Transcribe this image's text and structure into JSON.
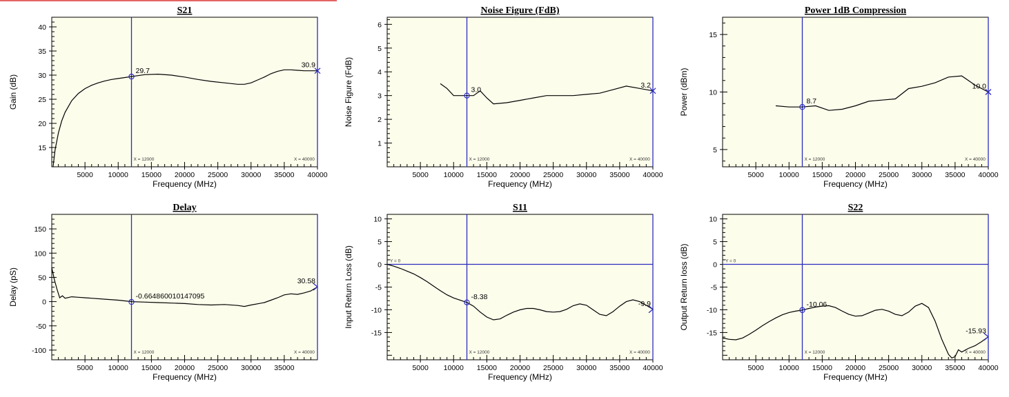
{
  "chart_data": [
    {
      "type": "line",
      "title": "S21",
      "xlabel": "Frequency (MHz)",
      "ylabel": "Gain (dB)",
      "xlim": [
        0,
        40000
      ],
      "ylim": [
        11,
        42
      ],
      "xticks": [
        5000,
        10000,
        15000,
        20000,
        25000,
        30000,
        35000,
        40000
      ],
      "yticks": [
        15,
        20,
        25,
        30,
        35,
        40
      ],
      "series": [
        {
          "x": [
            200,
            500,
            1000,
            1500,
            2000,
            3000,
            4000,
            5000,
            6000,
            7000,
            8000,
            9000,
            10000,
            11000,
            12000,
            13000,
            14000,
            16000,
            18000,
            20000,
            22000,
            24000,
            26000,
            28000,
            29000,
            30000,
            31000,
            32000,
            33000,
            34000,
            35000,
            36000,
            37000,
            38000,
            40000
          ],
          "y": [
            11,
            14.5,
            18,
            20.5,
            22.3,
            24.7,
            26.2,
            27.2,
            27.9,
            28.4,
            28.8,
            29.1,
            29.3,
            29.5,
            29.7,
            29.9,
            30.1,
            30.2,
            30.0,
            29.6,
            29.1,
            28.7,
            28.4,
            28.1,
            28.1,
            28.4,
            29.0,
            29.6,
            30.3,
            30.8,
            31.1,
            31.1,
            31.0,
            30.9,
            30.9
          ]
        }
      ],
      "markers": [
        {
          "x": 12000,
          "y": 29.7,
          "label": "29.7",
          "symbol": "circle",
          "tag": "X = 12000"
        },
        {
          "x": 40000,
          "y": 30.9,
          "label": "30.9",
          "symbol": "x",
          "tag": "X = 40000"
        }
      ]
    },
    {
      "type": "line",
      "title": "Noise Figure (FdB)",
      "xlabel": "Frequency (MHz)",
      "ylabel": "Noise Figure (FdB)",
      "xlim": [
        0,
        40000
      ],
      "ylim": [
        0,
        6.3
      ],
      "xticks": [
        5000,
        10000,
        15000,
        20000,
        25000,
        30000,
        35000,
        40000
      ],
      "yticks": [
        1,
        2,
        3,
        4,
        5,
        6
      ],
      "series": [
        {
          "x": [
            8000,
            9000,
            10000,
            11000,
            12000,
            13000,
            14000,
            15000,
            16000,
            18000,
            20000,
            22000,
            24000,
            26000,
            28000,
            30000,
            32000,
            34000,
            36000,
            38000,
            40000
          ],
          "y": [
            3.5,
            3.3,
            3.0,
            3.0,
            3.0,
            3.0,
            3.2,
            2.9,
            2.65,
            2.7,
            2.8,
            2.9,
            3.0,
            3.0,
            3.0,
            3.05,
            3.1,
            3.25,
            3.4,
            3.3,
            3.2
          ]
        }
      ],
      "markers": [
        {
          "x": 12000,
          "y": 3.0,
          "label": "3.0",
          "symbol": "circle",
          "tag": "X = 12000"
        },
        {
          "x": 40000,
          "y": 3.2,
          "label": "3.2",
          "symbol": "x",
          "tag": "X = 40000"
        }
      ]
    },
    {
      "type": "line",
      "title": "Power 1dB Compression",
      "xlabel": "Frequency (MHz)",
      "ylabel": "Power (dBm)",
      "xlim": [
        0,
        40000
      ],
      "ylim": [
        3.5,
        16.5
      ],
      "xticks": [
        5000,
        10000,
        15000,
        20000,
        25000,
        30000,
        35000,
        40000
      ],
      "yticks": [
        5,
        10,
        15
      ],
      "series": [
        {
          "x": [
            8000,
            10000,
            12000,
            14000,
            16000,
            18000,
            20000,
            22000,
            24000,
            26000,
            28000,
            30000,
            32000,
            34000,
            36000,
            38000,
            40000
          ],
          "y": [
            8.8,
            8.7,
            8.7,
            8.8,
            8.4,
            8.5,
            8.8,
            9.2,
            9.3,
            9.4,
            10.3,
            10.5,
            10.8,
            11.3,
            11.4,
            10.6,
            10.0
          ]
        }
      ],
      "markers": [
        {
          "x": 12000,
          "y": 8.7,
          "label": "8.7",
          "symbol": "circle",
          "tag": "X = 12000"
        },
        {
          "x": 40000,
          "y": 10.0,
          "label": "10.0",
          "symbol": "x",
          "tag": "X = 40000"
        }
      ]
    },
    {
      "type": "line",
      "title": "Delay",
      "xlabel": "Frequency (MHz)",
      "ylabel": "Delay (pS)",
      "xlim": [
        0,
        40000
      ],
      "ylim": [
        -120,
        180
      ],
      "xticks": [
        5000,
        10000,
        15000,
        20000,
        25000,
        30000,
        35000
      ],
      "yticks": [
        -100,
        -50,
        0,
        50,
        100,
        150
      ],
      "series": [
        {
          "x": [
            0,
            400,
            800,
            1200,
            1600,
            2000,
            3000,
            4000,
            5000,
            6000,
            8000,
            10000,
            12000,
            14000,
            16000,
            18000,
            20000,
            22000,
            24000,
            26000,
            28000,
            29000,
            30000,
            32000,
            33000,
            34000,
            35000,
            36000,
            37000,
            38000,
            39000,
            40000
          ],
          "y": [
            70,
            45,
            25,
            8,
            12,
            7,
            10,
            9,
            8,
            7,
            5,
            3,
            0,
            -1,
            -2,
            -3,
            -4,
            -6,
            -7,
            -6,
            -8,
            -10,
            -7,
            -2,
            3,
            8,
            14,
            16,
            15,
            18,
            22,
            30.58
          ]
        }
      ],
      "markers": [
        {
          "x": 12000,
          "y": -0.66486,
          "label": "-0.664860010147095",
          "symbol": "circle",
          "tag": "X = 12000"
        },
        {
          "x": 40000,
          "y": 30.58,
          "label": "30.58",
          "symbol": "arrow",
          "tag": "X = 40000"
        }
      ]
    },
    {
      "type": "line",
      "title": "S11",
      "xlabel": "Frequency (MHz)",
      "ylabel": "Input Return Loss (dB)",
      "xlim": [
        0,
        40000
      ],
      "ylim": [
        -21,
        11
      ],
      "xticks": [
        5000,
        10000,
        15000,
        20000,
        25000,
        30000,
        35000,
        40000
      ],
      "yticks": [
        -15,
        -10,
        -5,
        0,
        5,
        10
      ],
      "hline": {
        "y": 0,
        "tag": "Y = 0"
      },
      "series": [
        {
          "x": [
            0,
            1000,
            2000,
            3000,
            4000,
            5000,
            6000,
            7000,
            8000,
            9000,
            10000,
            11000,
            12000,
            13000,
            14000,
            15000,
            16000,
            17000,
            18000,
            19000,
            20000,
            21000,
            22000,
            23000,
            24000,
            25000,
            26000,
            27000,
            28000,
            29000,
            30000,
            31000,
            32000,
            33000,
            34000,
            35000,
            36000,
            37000,
            38000,
            39000,
            40000
          ],
          "y": [
            0,
            -0.4,
            -0.9,
            -1.5,
            -2.1,
            -2.9,
            -3.8,
            -4.8,
            -5.8,
            -6.7,
            -7.4,
            -7.9,
            -8.38,
            -9.2,
            -10.5,
            -11.6,
            -12.2,
            -12.0,
            -11.2,
            -10.5,
            -10.0,
            -9.7,
            -9.7,
            -10.0,
            -10.4,
            -10.5,
            -10.4,
            -9.9,
            -9.1,
            -8.7,
            -9.0,
            -10.0,
            -11.0,
            -11.3,
            -10.4,
            -9.2,
            -8.2,
            -7.8,
            -8.2,
            -9.0,
            -9.9
          ]
        }
      ],
      "markers": [
        {
          "x": 12000,
          "y": -8.38,
          "label": "-8.38",
          "symbol": "circle",
          "tag": "X = 12000"
        },
        {
          "x": 40000,
          "y": -9.9,
          "label": "-9.9",
          "symbol": "arrow",
          "tag": "X = 40000"
        }
      ]
    },
    {
      "type": "line",
      "title": "S22",
      "xlabel": "Frequency (MHz)",
      "ylabel": "Output Return loss (dB)",
      "xlim": [
        0,
        40000
      ],
      "ylim": [
        -21,
        11
      ],
      "xticks": [
        5000,
        10000,
        15000,
        20000,
        25000,
        30000,
        35000,
        40000
      ],
      "yticks": [
        -15,
        -10,
        -5,
        0,
        5,
        10
      ],
      "hline": {
        "y": 0,
        "tag": "Y = 0"
      },
      "series": [
        {
          "x": [
            0,
            1000,
            2000,
            3000,
            4000,
            5000,
            6000,
            7000,
            8000,
            9000,
            10000,
            11000,
            12000,
            13000,
            14000,
            15000,
            16000,
            17000,
            18000,
            19000,
            20000,
            21000,
            22000,
            23000,
            24000,
            25000,
            26000,
            27000,
            28000,
            29000,
            30000,
            31000,
            32000,
            33000,
            34000,
            34500,
            35000,
            35500,
            36000,
            37000,
            38000,
            39000,
            40000
          ],
          "y": [
            -16.2,
            -16.5,
            -16.6,
            -16.2,
            -15.4,
            -14.5,
            -13.5,
            -12.6,
            -11.8,
            -11.1,
            -10.6,
            -10.3,
            -10.06,
            -9.7,
            -9.4,
            -9.2,
            -9.1,
            -9.5,
            -10.3,
            -11.0,
            -11.4,
            -11.3,
            -10.7,
            -10.1,
            -9.9,
            -10.3,
            -11.0,
            -11.3,
            -10.5,
            -9.2,
            -8.6,
            -9.5,
            -12.5,
            -16.5,
            -19.8,
            -20.6,
            -20.3,
            -18.8,
            -19.3,
            -18.5,
            -17.9,
            -17.0,
            -15.93
          ]
        }
      ],
      "markers": [
        {
          "x": 12000,
          "y": -10.06,
          "label": "-10.06",
          "symbol": "circle",
          "tag": "X = 12000"
        },
        {
          "x": 40000,
          "y": -15.93,
          "label": "-15.93",
          "symbol": "arrow",
          "tag": "X = 40000"
        }
      ]
    }
  ],
  "colors": {
    "plot_bg": "#fdfdec",
    "marker_line": "#2b2bc0",
    "trace": "#000000",
    "accent_bar": "#e46464"
  }
}
